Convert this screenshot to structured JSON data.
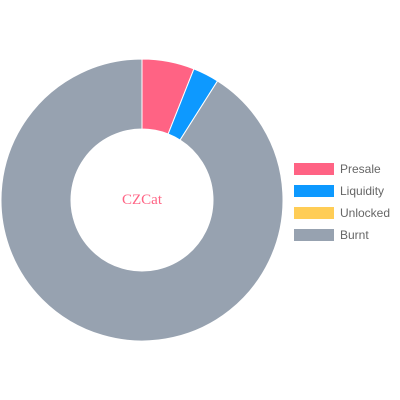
{
  "chart_data": {
    "type": "doughnut",
    "center_text": "CZCat",
    "center_text_color": "#ff6384",
    "legend_position": "right",
    "series": [
      {
        "values": [
          6,
          3,
          0,
          91
        ],
        "colors": [
          "#ff6384",
          "#0d99ff",
          "#ffcd56",
          "#97a2b0"
        ]
      }
    ],
    "categories": [
      "Presale",
      "Liquidity",
      "Unlocked",
      "Burnt"
    ],
    "legend": [
      {
        "label": "Presale",
        "color": "#ff6384"
      },
      {
        "label": "Liquidity",
        "color": "#0d99ff"
      },
      {
        "label": "Unlocked",
        "color": "#ffcd56"
      },
      {
        "label": "Burnt",
        "color": "#97a2b0"
      }
    ]
  }
}
